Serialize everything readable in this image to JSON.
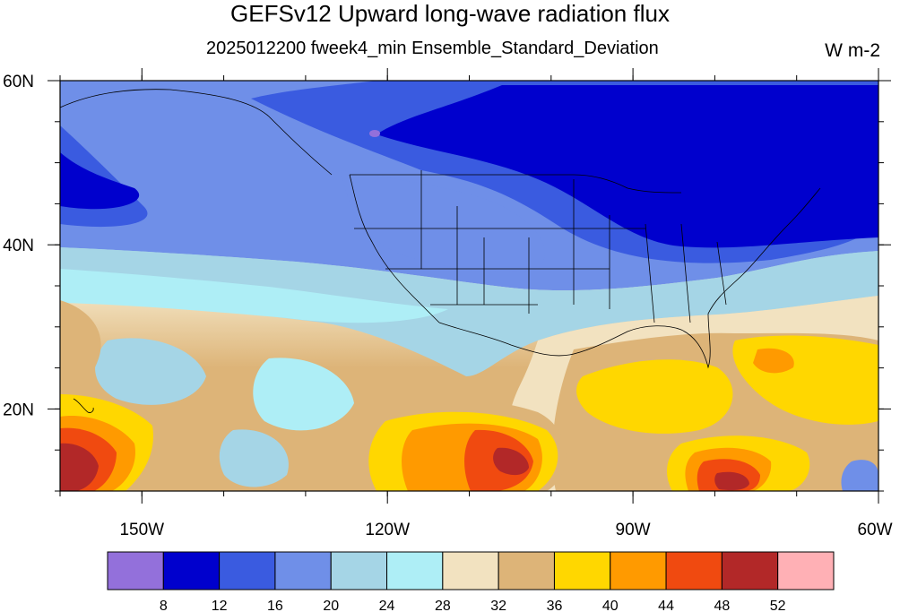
{
  "title": "GEFSv12 Upward long-wave radiation flux",
  "subtitle": "2025012200 fweek4_min Ensemble_Standard_Deviation",
  "units": "W m-2",
  "map": {
    "lon_range": [
      -160,
      -60
    ],
    "lat_range": [
      10,
      60
    ],
    "lon_ticks": [
      {
        "value": -150,
        "label": "150W"
      },
      {
        "value": -120,
        "label": "120W"
      },
      {
        "value": -90,
        "label": "90W"
      },
      {
        "value": -60,
        "label": "60W"
      }
    ],
    "lat_ticks": [
      {
        "value": 60,
        "label": "60N"
      },
      {
        "value": 40,
        "label": "40N"
      },
      {
        "value": 20,
        "label": "20N"
      }
    ]
  },
  "colorbar": {
    "colors": [
      "#9370DB",
      "#0000CD",
      "#3A5BE0",
      "#6F8FE8",
      "#A5D5E6",
      "#AEEEF6",
      "#F2E2C0",
      "#DDB478",
      "#FFD700",
      "#FF9A00",
      "#F04A10",
      "#B22828",
      "#FFB0B5"
    ],
    "labels": [
      "8",
      "12",
      "16",
      "20",
      "24",
      "28",
      "32",
      "36",
      "40",
      "44",
      "48",
      "52"
    ]
  }
}
